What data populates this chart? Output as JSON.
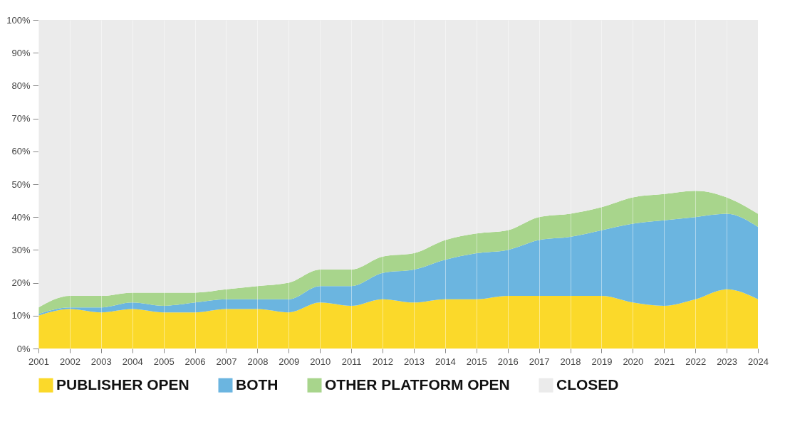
{
  "chart_data": {
    "type": "area",
    "stacked": true,
    "x": [
      2001,
      2002,
      2003,
      2004,
      2005,
      2006,
      2007,
      2008,
      2009,
      2010,
      2011,
      2012,
      2013,
      2014,
      2015,
      2016,
      2017,
      2018,
      2019,
      2020,
      2021,
      2022,
      2023,
      2024
    ],
    "series": [
      {
        "name": "PUBLISHER OPEN",
        "color": "#fbd92a",
        "values": [
          10,
          12,
          11,
          12,
          11,
          11,
          12,
          12,
          11,
          14,
          13,
          15,
          14,
          15,
          15,
          16,
          16,
          16,
          16,
          14,
          13,
          15,
          18,
          15
        ]
      },
      {
        "name": "BOTH",
        "color": "#6bb5e0",
        "values": [
          0.5,
          0.5,
          1.5,
          2,
          2,
          3,
          3,
          3,
          4,
          5,
          6,
          8,
          10,
          12,
          14,
          14,
          17,
          18,
          20,
          24,
          26,
          25,
          23,
          22
        ]
      },
      {
        "name": "OTHER PLATFORM OPEN",
        "color": "#a8d58c",
        "values": [
          2,
          3.5,
          3.5,
          3,
          4,
          3,
          3,
          4,
          5,
          5,
          5,
          5,
          5,
          6,
          6,
          6,
          7,
          7,
          7,
          8,
          8,
          8,
          5,
          4
        ]
      },
      {
        "name": "CLOSED",
        "color": "#ebebeb",
        "values": [
          87.5,
          84,
          84,
          83,
          83,
          83,
          82,
          81,
          80,
          76,
          76,
          72,
          71,
          67,
          65,
          64,
          60,
          59,
          57,
          54,
          53,
          52,
          54,
          59
        ]
      }
    ],
    "xlim": [
      2001,
      2024
    ],
    "xticks": [
      2001,
      2002,
      2003,
      2004,
      2005,
      2006,
      2007,
      2008,
      2009,
      2010,
      2011,
      2012,
      2013,
      2014,
      2015,
      2016,
      2017,
      2018,
      2019,
      2020,
      2021,
      2022,
      2023,
      2024
    ],
    "ylim": [
      0,
      100
    ],
    "yticks": [
      {
        "value": 0,
        "label": "0%"
      },
      {
        "value": 10,
        "label": "10%"
      },
      {
        "value": 20,
        "label": "20%"
      },
      {
        "value": 30,
        "label": "30%"
      },
      {
        "value": 40,
        "label": "40%"
      },
      {
        "value": 50,
        "label": "50%"
      },
      {
        "value": 60,
        "label": "60%"
      },
      {
        "value": 70,
        "label": "70%"
      },
      {
        "value": 80,
        "label": "80%"
      },
      {
        "value": 90,
        "label": "90%"
      },
      {
        "value": 100,
        "label": "100%"
      }
    ],
    "grid": "x",
    "legend": "bottom"
  }
}
